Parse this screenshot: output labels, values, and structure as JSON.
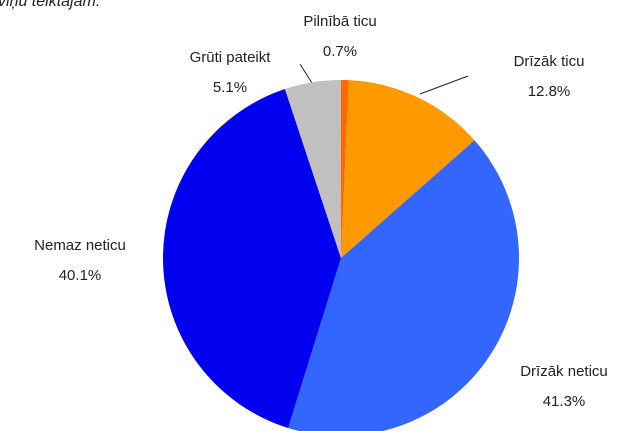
{
  "chart_data": {
    "type": "pie",
    "subtitle": "viņu teiktajam.",
    "categories": [
      "Pilnībā ticu",
      "Drīzāk ticu",
      "Drīzāk neticu",
      "Nemaz neticu",
      "Grūti pateikt"
    ],
    "values": [
      0.7,
      12.8,
      41.3,
      40.1,
      5.1
    ],
    "value_labels": [
      "0.7%",
      "12.8%",
      "41.3%",
      "40.1%",
      "5.1%"
    ],
    "colors": [
      "#ff6a00",
      "#ff9900",
      "#3366ff",
      "#0000ee",
      "#c0c0c0"
    ]
  }
}
